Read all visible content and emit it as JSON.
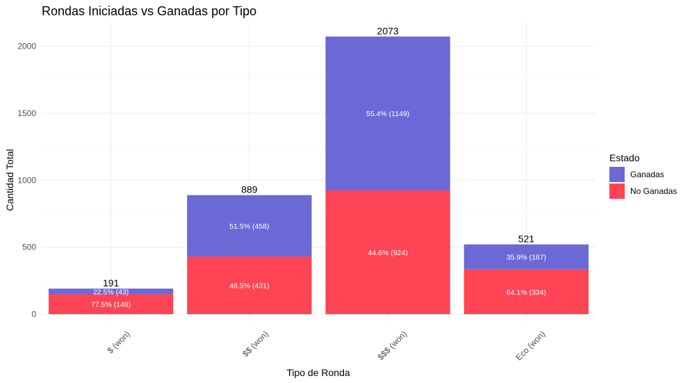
{
  "chart_data": {
    "type": "bar",
    "stacked": true,
    "title": "Rondas Iniciadas vs Ganadas por Tipo",
    "xlabel": "Tipo de Ronda",
    "ylabel": "Cantidad Total",
    "ylim": [
      0,
      2180
    ],
    "yticks": [
      0,
      500,
      1000,
      1500,
      2000
    ],
    "grid": true,
    "legend": {
      "title": "Estado",
      "position": "right"
    },
    "categories": [
      "$ (won)",
      "$$ (won)",
      "$$$ (won)",
      "Eco (won)"
    ],
    "totals": [
      191,
      889,
      2073,
      521
    ],
    "series": [
      {
        "name": "No Ganadas",
        "color": "#FF4455",
        "values": [
          148,
          431,
          924,
          334
        ],
        "labels": [
          "77.5% (148)",
          "48.5% (431)",
          "44.6% (924)",
          "64.1% (334)"
        ]
      },
      {
        "name": "Ganadas",
        "color": "#6B69D6",
        "values": [
          43,
          458,
          1149,
          187
        ],
        "labels": [
          "22.5% (43)",
          "51.5% (458)",
          "55.4% (1149)",
          "35.9% (187)"
        ]
      }
    ]
  }
}
